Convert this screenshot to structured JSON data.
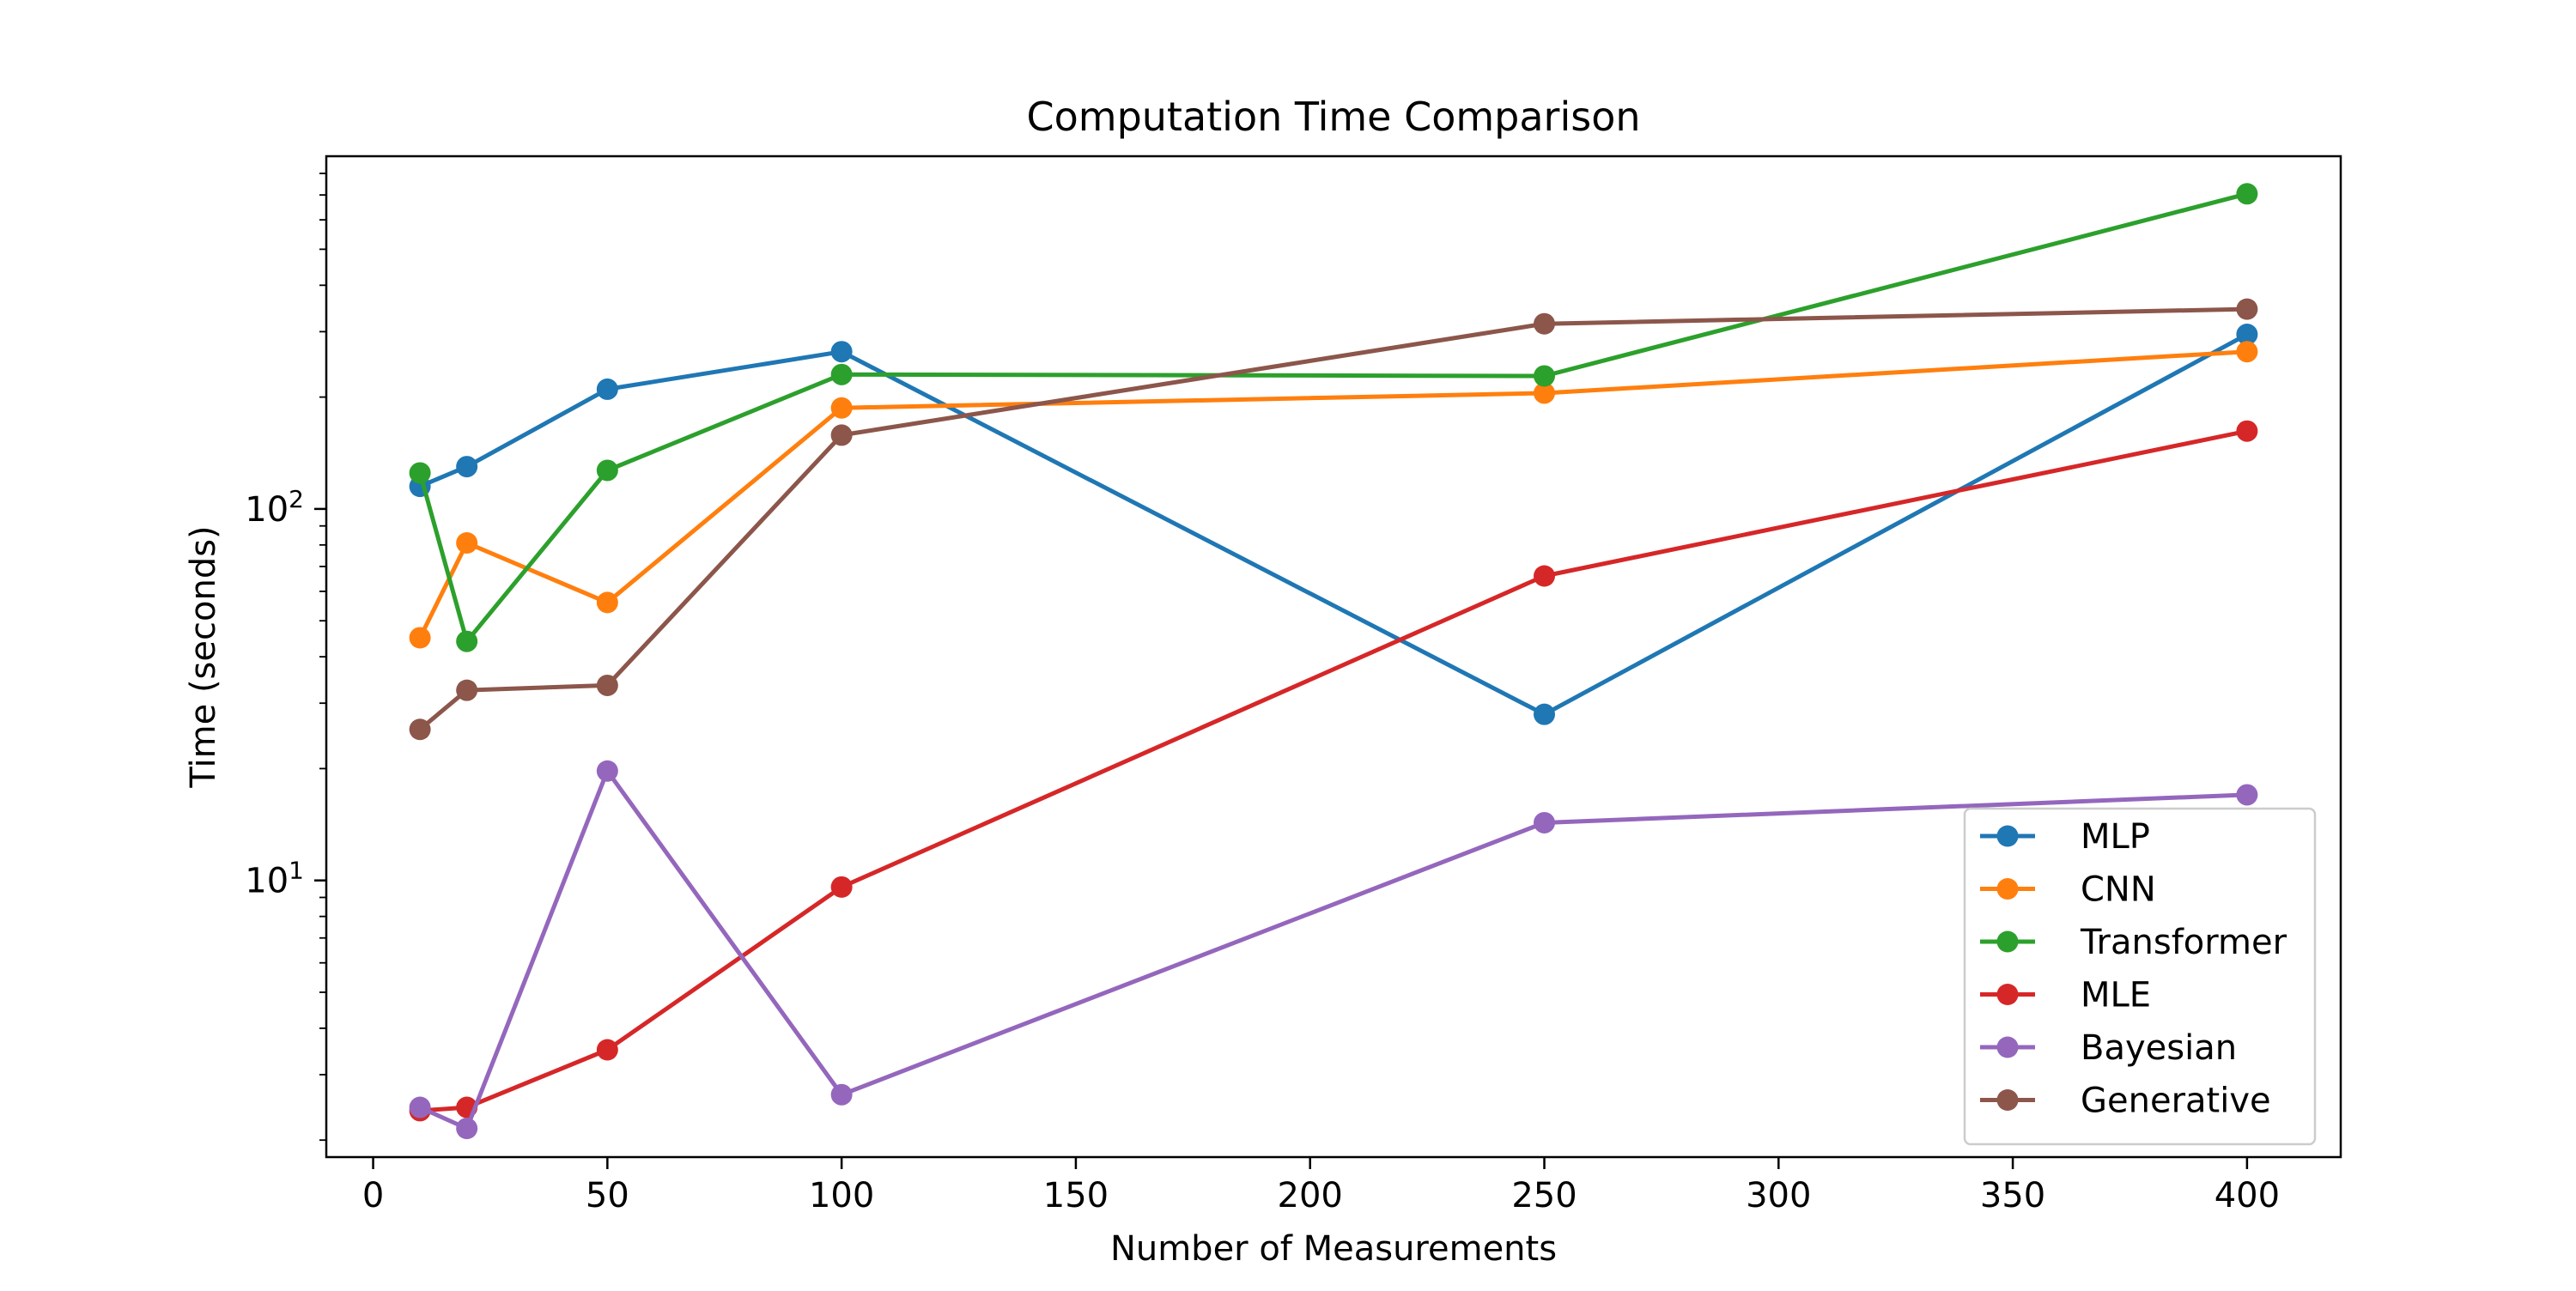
{
  "chart_data": {
    "type": "line",
    "title": "Computation Time Comparison",
    "xlabel": "Number of Measurements",
    "ylabel": "Time (seconds)",
    "x": [
      10,
      20,
      50,
      100,
      250,
      400
    ],
    "xlim": [
      -10,
      420
    ],
    "ylim": [
      1.8,
      890
    ],
    "y_scale": "log",
    "x_ticks": [
      0,
      50,
      100,
      150,
      200,
      250,
      300,
      350,
      400
    ],
    "y_major_ticks": [
      {
        "value": 10,
        "base": "10",
        "exp": "1"
      },
      {
        "value": 100,
        "base": "10",
        "exp": "2"
      }
    ],
    "grid": false,
    "legend_position": "lower-right",
    "series": [
      {
        "name": "MLP",
        "color": "#1f77b4",
        "values": [
          115,
          130,
          210,
          265,
          28,
          295
        ]
      },
      {
        "name": "CNN",
        "color": "#ff7f0e",
        "values": [
          45,
          81,
          56,
          187,
          205,
          265
        ]
      },
      {
        "name": "Transformer",
        "color": "#2ca02c",
        "values": [
          125,
          44,
          127,
          230,
          228,
          705
        ]
      },
      {
        "name": "MLE",
        "color": "#d62728",
        "values": [
          2.4,
          2.45,
          3.5,
          9.6,
          66,
          162
        ]
      },
      {
        "name": "Bayesian",
        "color": "#9467bd",
        "values": [
          2.45,
          2.15,
          19.7,
          2.65,
          14.3,
          17
        ]
      },
      {
        "name": "Generative",
        "color": "#8c564b",
        "values": [
          25.5,
          32.5,
          33.5,
          158,
          315,
          345
        ]
      }
    ]
  }
}
